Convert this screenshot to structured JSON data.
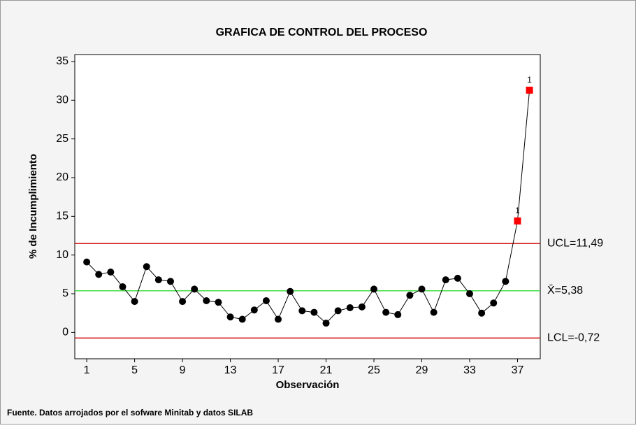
{
  "chart_data": {
    "type": "control",
    "title": "GRAFICA DE CONTROL DEL PROCESO",
    "xlabel": "Observación",
    "ylabel": "% de Incumplimiento",
    "footnote": "Fuente. Datos arrojados por el sofware Minitab y datos SILAB",
    "x": [
      1,
      2,
      3,
      4,
      5,
      6,
      7,
      8,
      9,
      10,
      11,
      12,
      13,
      14,
      15,
      16,
      17,
      18,
      19,
      20,
      21,
      22,
      23,
      24,
      25,
      26,
      27,
      28,
      29,
      30,
      31,
      32,
      33,
      34,
      35,
      36,
      37,
      38
    ],
    "values": [
      9.1,
      7.5,
      7.8,
      5.9,
      4.0,
      8.5,
      6.8,
      6.6,
      4.0,
      5.6,
      4.1,
      3.9,
      2.0,
      1.7,
      2.9,
      4.1,
      1.7,
      5.3,
      2.8,
      2.6,
      1.2,
      2.8,
      3.2,
      3.3,
      5.6,
      2.6,
      2.3,
      4.8,
      5.6,
      2.6,
      6.8,
      7.0,
      5.0,
      2.5,
      3.8,
      6.6,
      14.4,
      31.3
    ],
    "point_labels": [
      null,
      null,
      null,
      null,
      null,
      null,
      null,
      null,
      null,
      null,
      null,
      null,
      null,
      null,
      null,
      null,
      null,
      null,
      null,
      null,
      null,
      null,
      null,
      null,
      null,
      null,
      null,
      null,
      null,
      null,
      null,
      null,
      null,
      null,
      null,
      null,
      "1",
      "1"
    ],
    "color": "#000000",
    "flag_color": "#ff0000",
    "control_lines": [
      {
        "label": "UCL=11,49",
        "value": 11.49,
        "color": "#cc0000"
      },
      {
        "label": "X̄=5,38",
        "value": 5.38,
        "color": "#33dd33"
      },
      {
        "label": "LCL=-0,72",
        "value": -0.72,
        "color": "#cc0000"
      }
    ],
    "xlim": [
      0,
      38.9
    ],
    "ylim": [
      -3.4,
      35.9
    ],
    "xticks": [
      1,
      5,
      9,
      13,
      17,
      21,
      25,
      29,
      33,
      37
    ],
    "yticks": [
      0,
      5,
      10,
      15,
      20,
      25,
      30,
      35
    ]
  }
}
